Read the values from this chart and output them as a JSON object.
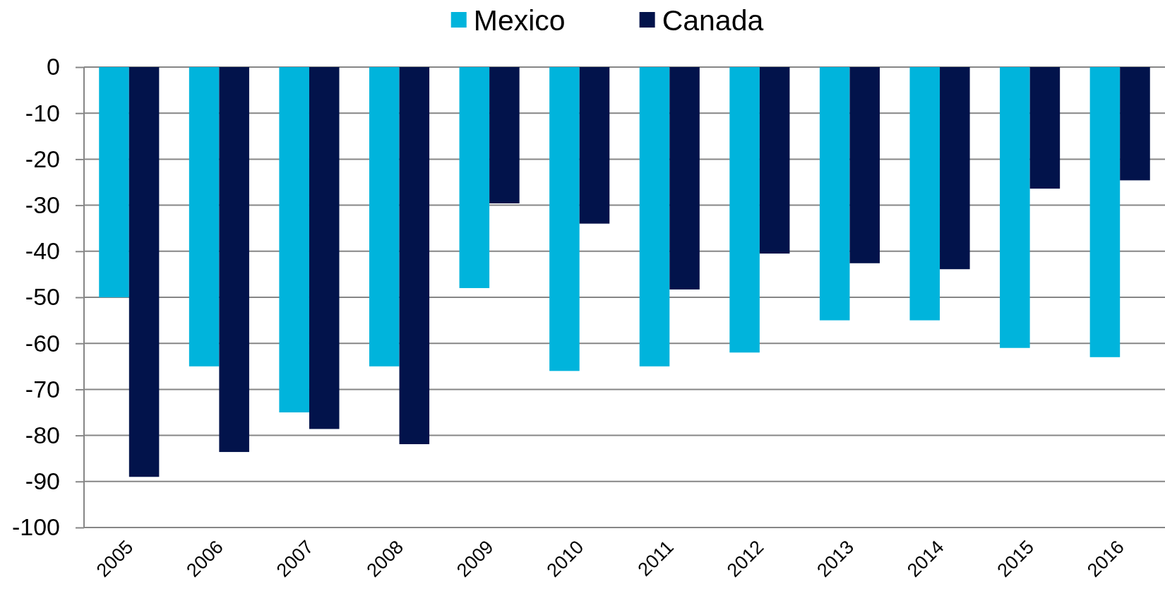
{
  "chart_data": {
    "type": "bar",
    "categories": [
      "2005",
      "2006",
      "2007",
      "2008",
      "2009",
      "2010",
      "2011",
      "2012",
      "2013",
      "2014",
      "2015",
      "2016"
    ],
    "series": [
      {
        "name": "Mexico",
        "color": "#00b4dc",
        "values": [
          -50,
          -65,
          -75,
          -65,
          -48,
          -66,
          -65,
          -62,
          -55,
          -55,
          -61,
          -63
        ]
      },
      {
        "name": "Canada",
        "color": "#02134b",
        "values": [
          -89,
          -83.6,
          -78.6,
          -81.9,
          -29.6,
          -34,
          -48.3,
          -40.5,
          -42.6,
          -43.9,
          -26.4,
          -24.6
        ]
      }
    ],
    "ylim": [
      -100,
      0
    ],
    "yticks": [
      -100,
      -90,
      -80,
      -70,
      -60,
      -50,
      -40,
      -30,
      -20,
      -10,
      0
    ],
    "grid": "y",
    "legend": "top"
  }
}
